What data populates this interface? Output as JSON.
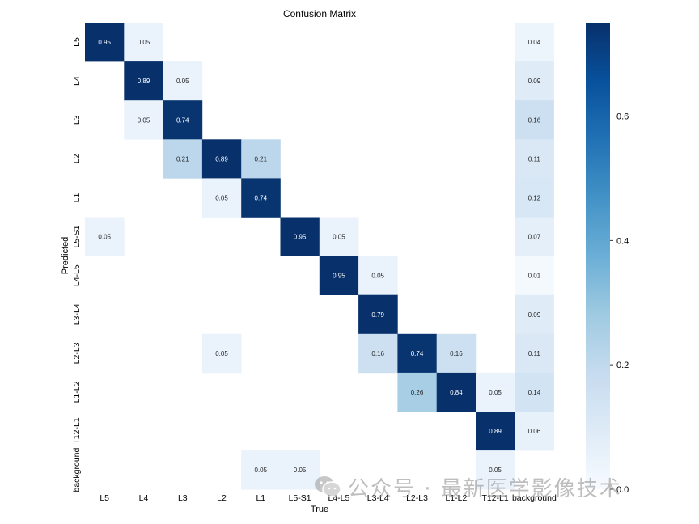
{
  "chart_data": {
    "type": "heatmap",
    "title": "Confusion Matrix",
    "xlabel": "True",
    "ylabel": "Predicted",
    "x_categories": [
      "L5",
      "L4",
      "L3",
      "L2",
      "L1",
      "L5-S1",
      "L4-L5",
      "L3-L4",
      "L2-L3",
      "L1-L2",
      "T12-L1",
      "background"
    ],
    "y_categories": [
      "L5",
      "L4",
      "L3",
      "L2",
      "L1",
      "L5-S1",
      "L4-L5",
      "L3-L4",
      "L2-L3",
      "L1-L2",
      "T12-L1",
      "background"
    ],
    "values": [
      [
        0.95,
        0.05,
        null,
        null,
        null,
        null,
        null,
        null,
        null,
        null,
        null,
        0.04
      ],
      [
        null,
        0.89,
        0.05,
        null,
        null,
        null,
        null,
        null,
        null,
        null,
        null,
        0.09
      ],
      [
        null,
        0.05,
        0.74,
        null,
        null,
        null,
        null,
        null,
        null,
        null,
        null,
        0.16
      ],
      [
        null,
        null,
        0.21,
        0.89,
        0.21,
        null,
        null,
        null,
        null,
        null,
        null,
        0.11
      ],
      [
        null,
        null,
        null,
        0.05,
        0.74,
        null,
        null,
        null,
        null,
        null,
        null,
        0.12
      ],
      [
        0.05,
        null,
        null,
        null,
        null,
        0.95,
        0.05,
        null,
        null,
        null,
        null,
        0.07
      ],
      [
        null,
        null,
        null,
        null,
        null,
        null,
        0.95,
        0.05,
        null,
        null,
        null,
        0.01
      ],
      [
        null,
        null,
        null,
        null,
        null,
        null,
        null,
        0.79,
        null,
        null,
        null,
        0.09
      ],
      [
        null,
        null,
        null,
        0.05,
        null,
        null,
        null,
        0.16,
        0.74,
        0.16,
        null,
        0.11
      ],
      [
        null,
        null,
        null,
        null,
        null,
        null,
        null,
        null,
        0.26,
        0.84,
        0.05,
        0.14
      ],
      [
        null,
        null,
        null,
        null,
        null,
        null,
        null,
        null,
        null,
        null,
        0.89,
        0.06
      ],
      [
        null,
        null,
        null,
        null,
        0.05,
        0.05,
        null,
        null,
        null,
        null,
        0.05,
        null
      ]
    ],
    "colormap": "Blues",
    "colorbar": {
      "vmin": 0.0,
      "vmax": 0.75,
      "ticks": [
        "0.0",
        "0.2",
        "0.4",
        "0.6",
        "0.8"
      ]
    },
    "grid": false,
    "legend": "colorbar-right"
  },
  "watermark": {
    "text": "公众号 · 最新医学影像技术",
    "icon": "wechat-icon"
  }
}
